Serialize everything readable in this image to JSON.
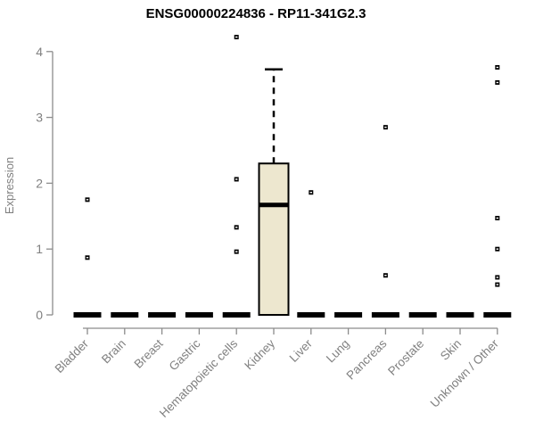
{
  "chart_data": {
    "type": "boxplot",
    "title": "ENSG00000224836 - RP11-341G2.3",
    "xlabel": "",
    "ylabel": "Expression",
    "ylim": [
      0,
      4
    ],
    "yticks": [
      "0",
      "1",
      "2",
      "3",
      "4"
    ],
    "grid": false,
    "legend": "none",
    "categories": [
      "Bladder",
      "Brain",
      "Breast",
      "Gastric",
      "Hematopoietic cells",
      "Kidney",
      "Liver",
      "Lung",
      "Pancreas",
      "Prostate",
      "Skin",
      "Unknown / Other"
    ],
    "boxes": [
      {
        "category": "Bladder",
        "low": 0,
        "q1": 0,
        "median": 0,
        "q3": 0,
        "high": 0,
        "outliers": [
          1.75,
          0.87
        ]
      },
      {
        "category": "Brain",
        "low": 0,
        "q1": 0,
        "median": 0,
        "q3": 0,
        "high": 0,
        "outliers": []
      },
      {
        "category": "Breast",
        "low": 0,
        "q1": 0,
        "median": 0,
        "q3": 0,
        "high": 0,
        "outliers": []
      },
      {
        "category": "Gastric",
        "low": 0,
        "q1": 0,
        "median": 0,
        "q3": 0,
        "high": 0,
        "outliers": []
      },
      {
        "category": "Hematopoietic cells",
        "low": 0,
        "q1": 0,
        "median": 0,
        "q3": 0,
        "high": 0,
        "outliers": [
          4.22,
          2.06,
          1.33,
          0.96
        ]
      },
      {
        "category": "Kidney",
        "low": 0,
        "q1": 0,
        "median": 1.67,
        "q3": 2.3,
        "high": 3.73,
        "outliers": []
      },
      {
        "category": "Liver",
        "low": 0,
        "q1": 0,
        "median": 0,
        "q3": 0,
        "high": 0,
        "outliers": [
          1.86
        ]
      },
      {
        "category": "Lung",
        "low": 0,
        "q1": 0,
        "median": 0,
        "q3": 0,
        "high": 0,
        "outliers": []
      },
      {
        "category": "Pancreas",
        "low": 0,
        "q1": 0,
        "median": 0,
        "q3": 0,
        "high": 0,
        "outliers": [
          2.85,
          0.6
        ]
      },
      {
        "category": "Prostate",
        "low": 0,
        "q1": 0,
        "median": 0,
        "q3": 0,
        "high": 0,
        "outliers": []
      },
      {
        "category": "Skin",
        "low": 0,
        "q1": 0,
        "median": 0,
        "q3": 0,
        "high": 0,
        "outliers": []
      },
      {
        "category": "Unknown / Other",
        "low": 0,
        "q1": 0,
        "median": 0,
        "q3": 0,
        "high": 0,
        "outliers": [
          3.76,
          3.53,
          1.47,
          1.0,
          0.57,
          0.46
        ]
      }
    ],
    "colors": {
      "box_fill": "#EDE7CF",
      "box_stroke": "#000000",
      "median": "#000000",
      "outlier": "#000000",
      "axis_line": "#8C8C8C",
      "tick_label": "#808080",
      "title": "#000000",
      "background": "#FFFFFF"
    }
  }
}
